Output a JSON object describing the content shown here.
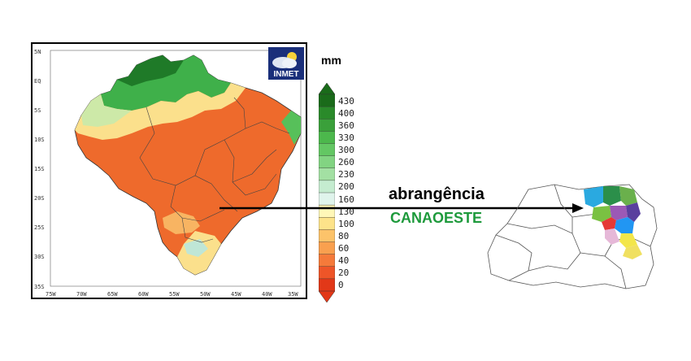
{
  "map": {
    "lat_ticks": [
      "5N",
      "EQ",
      "5S",
      "10S",
      "15S",
      "20S",
      "25S",
      "30S",
      "35S"
    ],
    "lon_ticks": [
      "75W",
      "70W",
      "65W",
      "60W",
      "55W",
      "50W",
      "45W",
      "40W",
      "35W"
    ]
  },
  "logo": {
    "text": "INMET"
  },
  "legend": {
    "unit": "mm",
    "levels": [
      "430",
      "400",
      "360",
      "330",
      "300",
      "260",
      "230",
      "200",
      "160",
      "130",
      "100",
      "80",
      "60",
      "40",
      "20",
      "0"
    ],
    "colors": [
      "#1a6b1a",
      "#2a8a2a",
      "#3aa03a",
      "#4cb84c",
      "#63c763",
      "#82d482",
      "#a3e0a3",
      "#c5ecd0",
      "#e0f4ec",
      "#fff7b8",
      "#fde38a",
      "#fcc36a",
      "#f9a04f",
      "#f57a3a",
      "#ee5528",
      "#e23818"
    ]
  },
  "caption": {
    "line1": "abrangência",
    "line2": "CANAOESTE"
  },
  "colors": {
    "caption2": "#1e9a3c",
    "arrow": "#000000"
  }
}
